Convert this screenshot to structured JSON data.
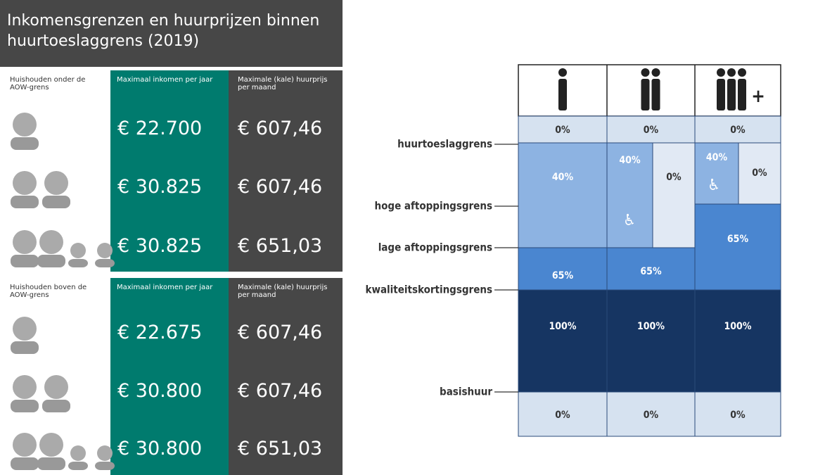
{
  "left": {
    "title": "Inkomensgrenzen en huurprijzen binnen huurtoeslaggrens (2019)",
    "sections": [
      {
        "household": "Huishouden onder de AOW-grens",
        "income_header": "Maximaal inkomen per jaar",
        "rent_header": "Maximale (kale) huurprijs per maand",
        "rows": [
          [
            "€ 22.700",
            "€ 607,46"
          ],
          [
            "€ 30.825",
            "€ 607,46"
          ],
          [
            "€ 30.825",
            "€ 651,03"
          ]
        ]
      },
      {
        "household": "Huishouden boven de AOW-grens",
        "income_header": "Maximaal inkomen per jaar",
        "rent_header": "Maximale (kale) huurprijs per maand",
        "rows": [
          [
            "€ 22.675",
            "€ 607,46"
          ],
          [
            "€ 30.800",
            "€ 607,46"
          ],
          [
            "€ 30.800",
            "€ 651,03"
          ]
        ]
      }
    ]
  },
  "right": {
    "header_plus": "+",
    "levels": [
      "huurtoeslaggrens",
      "hoge aftoppingsgrens",
      "lage aftoppingsgrens",
      "kwaliteitskortingsgrens",
      "basishuur"
    ],
    "cells": [
      "0%",
      "0%",
      "0%",
      "40%",
      "40%",
      "0%",
      "40%",
      "0%",
      "65%",
      "65%",
      "65%",
      "100%",
      "100%",
      "100%",
      "0%",
      "0%",
      "0%"
    ]
  }
}
